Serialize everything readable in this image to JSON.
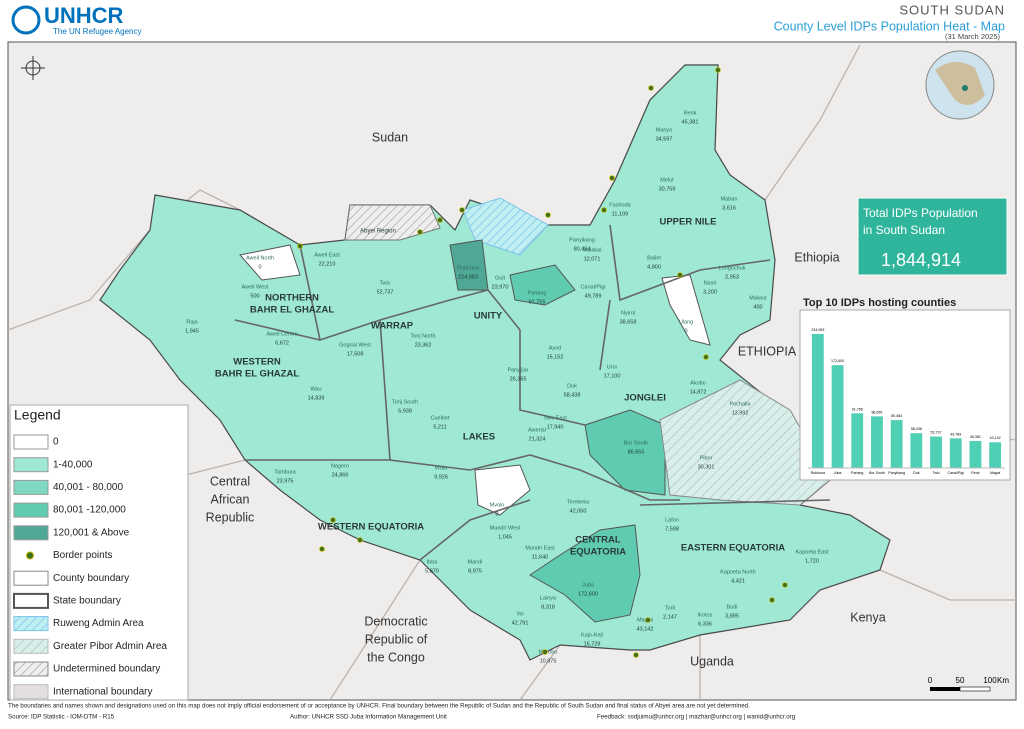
{
  "header": {
    "logo": "UNHCR",
    "tagline": "The UN Refugee Agency",
    "country": "SOUTH SUDAN",
    "title": "County Level IDPs Population Heat - Map",
    "date": "(31 March 2025)"
  },
  "total_box": {
    "label": [
      "Total IDPs Population",
      "in South Sudan"
    ],
    "value": "1,844,914"
  },
  "countries": [
    {
      "lines": [
        "Sudan"
      ]
    },
    {
      "lines": [
        "Ethiopia"
      ]
    },
    {
      "lines": [
        "ETHIOPIA"
      ]
    },
    {
      "lines": [
        "Kenya"
      ]
    },
    {
      "lines": [
        "Uganda"
      ]
    },
    {
      "lines": [
        "Central",
        "African",
        "Republic"
      ]
    },
    {
      "lines": [
        "Democratic",
        "Republic of",
        "the Congo"
      ]
    }
  ],
  "states": [
    {
      "lines": [
        "UNITY"
      ]
    },
    {
      "lines": [
        "WARRAP"
      ]
    },
    {
      "lines": [
        "NORTHERN",
        "BAHR EL GHAZAL"
      ]
    },
    {
      "lines": [
        "WESTERN",
        "BAHR EL GHAZAL"
      ]
    },
    {
      "lines": [
        "LAKES"
      ]
    },
    {
      "lines": [
        "JONGLEI"
      ]
    },
    {
      "lines": [
        "UPPER NILE"
      ]
    },
    {
      "lines": [
        "WESTERN EQUATORIA"
      ]
    },
    {
      "lines": [
        "CENTRAL",
        "EQUATORIA"
      ]
    },
    {
      "lines": [
        "EASTERN EQUATORIA"
      ]
    },
    {
      "lines": [
        "Abyei Region"
      ]
    }
  ],
  "counties": [
    {
      "name": "Renk",
      "value": "45,381"
    },
    {
      "name": "Manyo",
      "value": "34,597"
    },
    {
      "name": "Melut",
      "value": "30,759"
    },
    {
      "name": "Maban",
      "value": "3,616"
    },
    {
      "name": "Fashoda",
      "value": "11,109"
    },
    {
      "name": "Panyikang",
      "value": "80,454"
    },
    {
      "name": "Malakal",
      "value": "12,071"
    },
    {
      "name": "Baliet",
      "value": "4,800"
    },
    {
      "name": "Longochuk",
      "value": "2,953"
    },
    {
      "name": "Maiwut",
      "value": "400"
    },
    {
      "name": "Ulang",
      "value": "0"
    },
    {
      "name": "Nasir",
      "value": "3,200"
    },
    {
      "name": "Pariang",
      "value": "91,755"
    },
    {
      "name": "Canal/Pigi",
      "value": "49,789"
    },
    {
      "name": "Rubkona",
      "value": "224,983"
    },
    {
      "name": "Guit",
      "value": "23,970"
    },
    {
      "name": "Aweil East",
      "value": "22,210"
    },
    {
      "name": "Aweil North",
      "value": "0"
    },
    {
      "name": "Aweil West",
      "value": "500"
    },
    {
      "name": "Aweil Centre",
      "value": "6,672"
    },
    {
      "name": "Raja",
      "value": "1,945"
    },
    {
      "name": "Twic",
      "value": "52,737"
    },
    {
      "name": "Tonj North",
      "value": "23,362"
    },
    {
      "name": "Gogrial West",
      "value": "17,508"
    },
    {
      "name": "Wau",
      "value": "14,839"
    },
    {
      "name": "Tonj South",
      "value": "5,938"
    },
    {
      "name": "Cueibet",
      "value": "5,211"
    },
    {
      "name": "Awerial",
      "value": "21,324"
    },
    {
      "name": "Wulu",
      "value": "9,926"
    },
    {
      "name": "Mvolo",
      "value": "0"
    },
    {
      "name": "Nagero",
      "value": "24,866"
    },
    {
      "name": "Tambura",
      "value": "23,975"
    },
    {
      "name": "Ibba",
      "value": "5,870"
    },
    {
      "name": "Maridi",
      "value": "8,975"
    },
    {
      "name": "Mundri West",
      "value": "1,045"
    },
    {
      "name": "Mundri East",
      "value": "11,640"
    },
    {
      "name": "Terekeka",
      "value": "42,050"
    },
    {
      "name": "Juba",
      "value": "172,600"
    },
    {
      "name": "Yei",
      "value": "42,791"
    },
    {
      "name": "Lainya",
      "value": "8,318"
    },
    {
      "name": "Kajo-Keji",
      "value": "15,728"
    },
    {
      "name": "Morobo",
      "value": "10,875"
    },
    {
      "name": "Magwi",
      "value": "43,142"
    },
    {
      "name": "Torit",
      "value": "2,147"
    },
    {
      "name": "Ikotos",
      "value": "6,336"
    },
    {
      "name": "Budi",
      "value": "3,895"
    },
    {
      "name": "Kapoeta North",
      "value": "4,421"
    },
    {
      "name": "Kapoeta East",
      "value": "1,720"
    },
    {
      "name": "Lafon",
      "value": "7,598"
    },
    {
      "name": "Bor South",
      "value": "86,655"
    },
    {
      "name": "Twic East",
      "value": "17,940"
    },
    {
      "name": "Duk",
      "value": "58,438"
    },
    {
      "name": "Ayod",
      "value": "15,152"
    },
    {
      "name": "Uror",
      "value": "17,100"
    },
    {
      "name": "Nyirol",
      "value": "38,658"
    },
    {
      "name": "Akobo",
      "value": "14,872"
    },
    {
      "name": "Pochalla",
      "value": "13,992"
    },
    {
      "name": "Pibor",
      "value": "30,301"
    },
    {
      "name": "Panyijiar",
      "value": "26,365"
    }
  ],
  "legend": {
    "title": "Legend",
    "items": [
      "0",
      "1-40,000",
      "40,001 - 80,000",
      "80,001 -120,000",
      "120,001 & Above",
      "Border points",
      "County boundary",
      "State boundary",
      "Ruweng Admin Area",
      "Greater Pibor Admin Area",
      "Undetermined boundary",
      "International boundary"
    ]
  },
  "scale_bar": {
    "labels": [
      "0",
      "50",
      "100",
      "Km"
    ]
  },
  "footer": {
    "disclaimer": "The boundaries and names shown and designations used on this map does not imply official endorsement of or acceptance by UNHCR. Final boundary between the Republic of Sudan and the Republic of South Sudan and final status of Abyei area are not yet determined.",
    "source": "Source: IDP Statistic - IOM-DTM - R15",
    "author": "Author: UNHCR SSD Juba Information Management Unit",
    "feedback": "Feedback: ssdjuimu@unhcr.org | mazhar@unhcr.org | wanid@unhcr.org"
  },
  "chart_data": {
    "type": "bar",
    "title": "Top 10  IDPs hosting counties",
    "categories": [
      "Rubkona",
      "Juba",
      "Pariang",
      "Bor South",
      "Panyikang",
      "Duk",
      "Twic",
      "Canal/Pigi",
      "Renk",
      "Magwi"
    ],
    "values": [
      224983,
      172600,
      91755,
      86655,
      80454,
      58438,
      52737,
      49789,
      45381,
      43142
    ],
    "value_labels": [
      "224,983",
      "172,600",
      "91,755",
      "86,655",
      "80,454",
      "58,438",
      "52,737",
      "49,789",
      "45,381",
      "43,142"
    ],
    "color": "#4fcfb3",
    "ylim": [
      0,
      240000
    ]
  }
}
